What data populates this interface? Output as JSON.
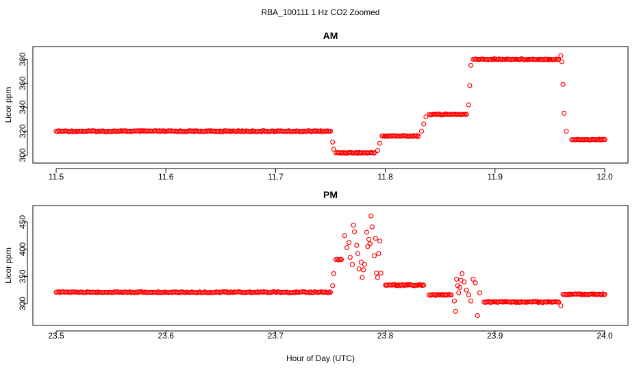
{
  "figure": {
    "title": "RBA_100111  1 Hz CO2 Zoomed",
    "xlabel": "Hour of Day (UTC)"
  },
  "colors": {
    "points": "#ff0000",
    "axes": "#000000",
    "background": "#ffffff"
  },
  "chart_data": [
    {
      "type": "scatter",
      "title": "AM",
      "xlabel": "Hour of Day (UTC)",
      "ylabel": "Licor ppm",
      "xlim": [
        11.5,
        12.0
      ],
      "ylim": [
        298,
        386
      ],
      "xticks": [
        "11.5",
        "11.6",
        "11.7",
        "11.8",
        "11.9",
        "12.0"
      ],
      "yticks": [
        "300",
        "320",
        "340",
        "360",
        "380"
      ],
      "grid": false,
      "series": [
        {
          "x": [
            11.5,
            11.52,
            11.54,
            11.56,
            11.58,
            11.6,
            11.62,
            11.64,
            11.66,
            11.68,
            11.7,
            11.72,
            11.74,
            11.75,
            11.752,
            11.753,
            11.755,
            11.76,
            11.765,
            11.77,
            11.775,
            11.78,
            11.785,
            11.79,
            11.793,
            11.795,
            11.797,
            11.8,
            11.805,
            11.81,
            11.815,
            11.82,
            11.825,
            11.83,
            11.833,
            11.835,
            11.837,
            11.84,
            11.845,
            11.85,
            11.855,
            11.86,
            11.865,
            11.87,
            11.874,
            11.876,
            11.877,
            11.878,
            11.88,
            11.885,
            11.89,
            11.9,
            11.91,
            11.92,
            11.93,
            11.94,
            11.95,
            11.958,
            11.96,
            11.961,
            11.962,
            11.963,
            11.965,
            11.97,
            11.975,
            11.98,
            11.985,
            11.99,
            11.995,
            12.0
          ],
          "y": [
            320,
            320,
            320,
            320,
            320,
            320,
            320,
            320,
            320,
            320,
            320,
            320,
            320,
            320,
            311,
            305,
            302,
            302,
            302,
            302,
            302,
            302,
            302,
            302,
            304,
            310,
            316,
            316,
            316,
            316,
            316,
            316,
            316,
            316,
            320,
            326,
            332,
            334,
            334,
            334,
            334,
            334,
            334,
            334,
            334,
            342,
            358,
            375,
            380,
            380,
            380,
            380,
            380,
            380,
            380,
            380,
            380,
            380,
            383,
            378,
            359,
            335,
            320,
            313,
            313,
            313,
            313,
            313,
            313,
            313
          ]
        }
      ]
    },
    {
      "type": "scatter",
      "title": "PM",
      "xlabel": "Hour of Day (UTC)",
      "ylabel": "Licor ppm",
      "xlim": [
        23.5,
        24.0
      ],
      "ylim": [
        270,
        470
      ],
      "xticks": [
        "23.5",
        "23.6",
        "23.7",
        "23.8",
        "23.9",
        "24.0"
      ],
      "yticks": [
        "300",
        "350",
        "400",
        "450"
      ],
      "grid": false,
      "series": [
        {
          "x": [
            23.5,
            23.52,
            23.54,
            23.56,
            23.58,
            23.6,
            23.62,
            23.64,
            23.66,
            23.68,
            23.7,
            23.72,
            23.74,
            23.75,
            23.752,
            23.753,
            23.755,
            23.76,
            23.763,
            23.765,
            23.767,
            23.768,
            23.77,
            23.771,
            23.772,
            23.774,
            23.775,
            23.776,
            23.778,
            23.779,
            23.78,
            23.781,
            23.783,
            23.784,
            23.785,
            23.786,
            23.787,
            23.788,
            23.79,
            23.791,
            23.792,
            23.793,
            23.794,
            23.795,
            23.796,
            23.8,
            23.81,
            23.82,
            23.83,
            23.835,
            23.84,
            23.85,
            23.86,
            23.863,
            23.864,
            23.865,
            23.866,
            23.867,
            23.868,
            23.869,
            23.87,
            23.872,
            23.874,
            23.876,
            23.878,
            23.88,
            23.882,
            23.884,
            23.886,
            23.89,
            23.9,
            23.91,
            23.92,
            23.93,
            23.94,
            23.95,
            23.958,
            23.96,
            23.962,
            23.97,
            23.98,
            23.99,
            24.0
          ],
          "y": [
            321,
            321,
            321,
            321,
            321,
            321,
            321,
            321,
            321,
            321,
            321,
            321,
            321,
            321,
            333,
            355,
            381,
            381,
            425,
            403,
            412,
            385,
            372,
            444,
            432,
            407,
            392,
            364,
            376,
            348,
            362,
            372,
            431,
            405,
            418,
            410,
            461,
            441,
            388,
            420,
            356,
            348,
            392,
            415,
            356,
            334,
            334,
            334,
            334,
            334,
            316,
            316,
            316,
            305,
            286,
            345,
            333,
            320,
            330,
            343,
            355,
            340,
            325,
            316,
            305,
            345,
            338,
            278,
            320,
            303,
            303,
            303,
            303,
            303,
            303,
            303,
            303,
            296,
            317,
            317,
            317,
            317,
            317
          ]
        }
      ]
    }
  ]
}
